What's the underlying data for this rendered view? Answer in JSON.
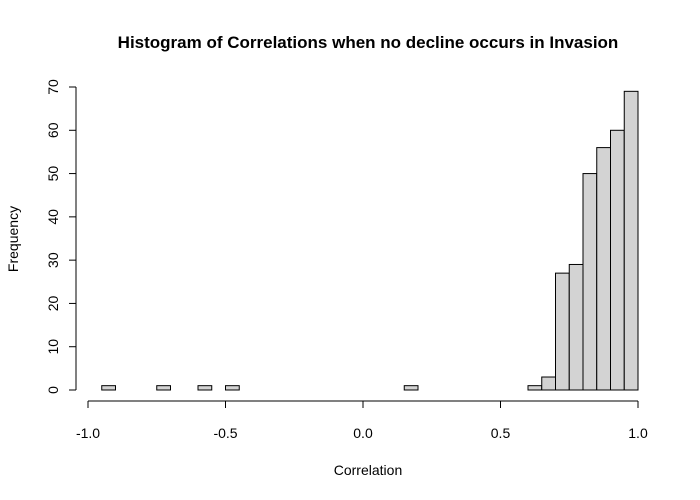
{
  "chart_data": {
    "type": "bar",
    "title": "Histogram of Correlations when no decline occurs in Invasion",
    "xlabel": "Correlation",
    "ylabel": "Frequency",
    "xlim": [
      -1.0,
      1.0
    ],
    "ylim": [
      0,
      70
    ],
    "xticks": [
      -1.0,
      -0.5,
      0.0,
      0.5,
      1.0
    ],
    "xtick_labels": [
      "-1.0",
      "-0.5",
      "0.0",
      "0.5",
      "1.0"
    ],
    "yticks": [
      0,
      10,
      20,
      30,
      40,
      50,
      60,
      70
    ],
    "ytick_labels": [
      "0",
      "10",
      "20",
      "30",
      "40",
      "50",
      "60",
      "70"
    ],
    "bin_width": 0.05,
    "bins": [
      {
        "start": -0.95,
        "end": -0.9,
        "count": 1
      },
      {
        "start": -0.75,
        "end": -0.7,
        "count": 1
      },
      {
        "start": -0.6,
        "end": -0.55,
        "count": 1
      },
      {
        "start": -0.5,
        "end": -0.45,
        "count": 1
      },
      {
        "start": 0.15,
        "end": 0.2,
        "count": 1
      },
      {
        "start": 0.6,
        "end": 0.65,
        "count": 1
      },
      {
        "start": 0.65,
        "end": 0.7,
        "count": 3
      },
      {
        "start": 0.7,
        "end": 0.75,
        "count": 27
      },
      {
        "start": 0.75,
        "end": 0.8,
        "count": 29
      },
      {
        "start": 0.8,
        "end": 0.85,
        "count": 50
      },
      {
        "start": 0.85,
        "end": 0.9,
        "count": 56
      },
      {
        "start": 0.9,
        "end": 0.95,
        "count": 60
      },
      {
        "start": 0.95,
        "end": 1.0,
        "count": 69
      }
    ],
    "bar_fill": "#d3d3d3",
    "bar_stroke": "#000000",
    "grid": false,
    "legend": "none"
  }
}
